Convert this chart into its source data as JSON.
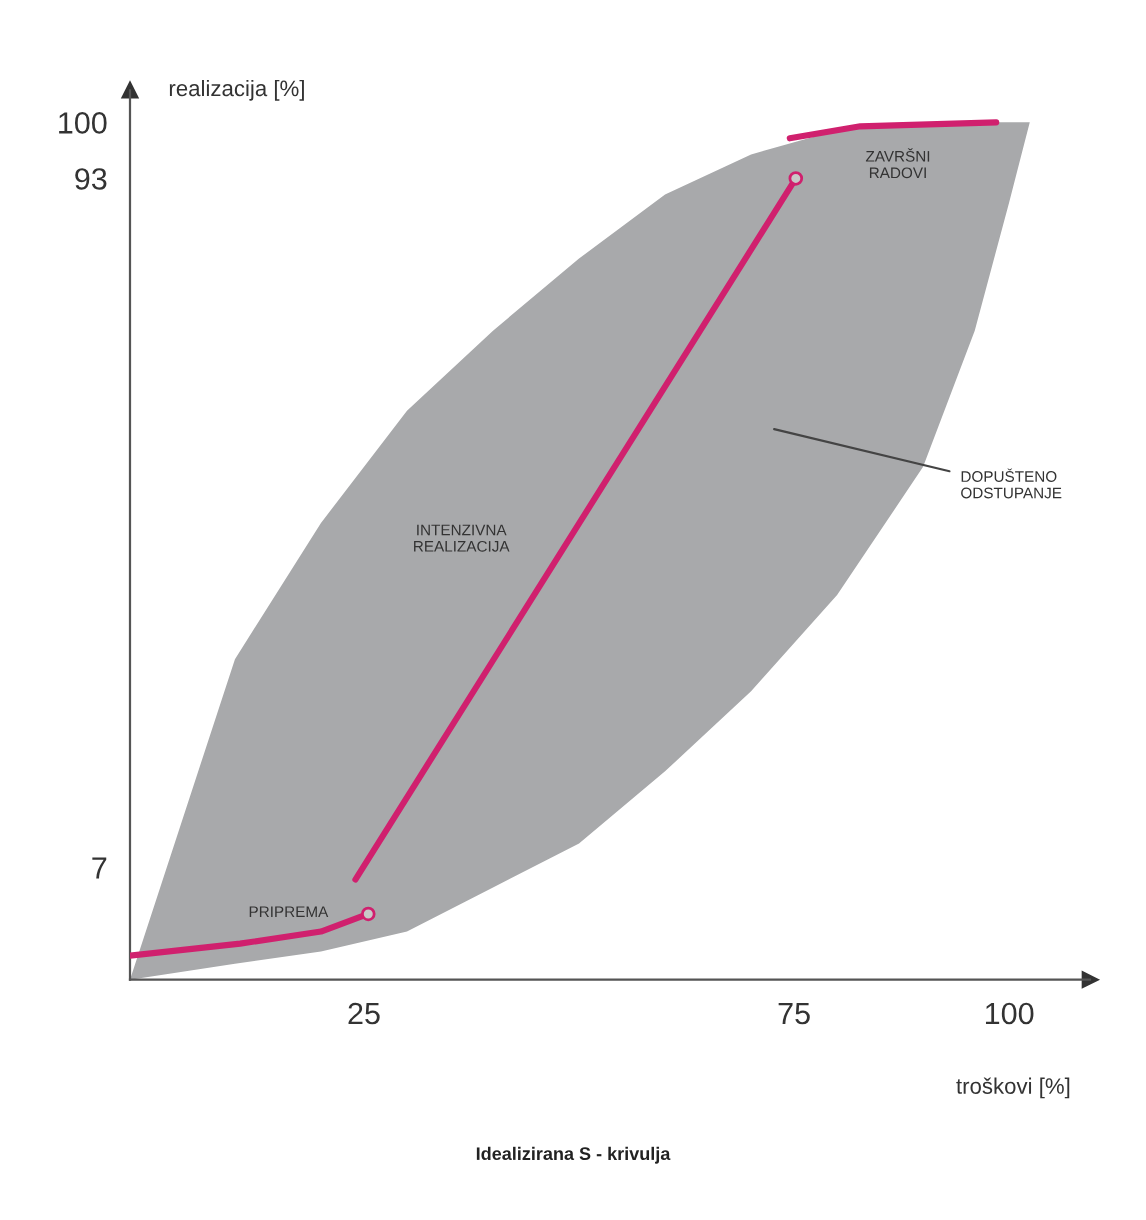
{
  "chart_data": {
    "type": "line",
    "title": "Idealizirana S - krivulja",
    "xlabel": "troškovi [%]",
    "ylabel": "realizacija [%]",
    "xlim": [
      -2.2,
      109.4
    ],
    "ylim": [
      -7,
      104
    ],
    "xticks": [
      25,
      75,
      100
    ],
    "yticks": [
      7,
      93,
      100
    ],
    "grid": false,
    "series": [
      {
        "type": "line",
        "color": "#a8a9ab",
        "x": [
          -2.2,
          10,
          20,
          30,
          40,
          50,
          60,
          70,
          80,
          90,
          96,
          100,
          102.4
        ],
        "values": [
          null,
          null,
          null,
          null,
          null,
          null,
          null,
          null,
          null,
          null,
          null,
          null,
          null
        ],
        "lower": [
          -7,
          -5,
          -3.5,
          -1,
          4.5,
          10,
          19,
          29,
          41,
          57,
          74,
          90,
          100
        ],
        "upper": [
          -7,
          33,
          50,
          64,
          74,
          83,
          91,
          96,
          99,
          100,
          100,
          100,
          100
        ]
      },
      {
        "type": "line",
        "color": "#d0206e",
        "x": [
          -2.2,
          10.6,
          20,
          25.5
        ],
        "values": [
          -4,
          -2.5,
          -1,
          1.2
        ]
      },
      {
        "type": "line",
        "color": "#d0206e",
        "x": [
          24,
          75.2
        ],
        "values": [
          5.5,
          93
        ]
      },
      {
        "type": "line",
        "color": "#d0206e",
        "x": [
          74.5,
          82.7,
          98.5
        ],
        "values": [
          98,
          99.5,
          100
        ]
      },
      {
        "type": "scatter",
        "color": "#d0206e",
        "marker": "circle",
        "x": [
          25.5,
          75.2
        ],
        "values": [
          1.2,
          93
        ]
      }
    ],
    "annotations": [
      "ZAVRŠNI\nRADOVI",
      "INTENZIVNA\nREALIZACIJA",
      "PRIPREMA",
      "DOPUŠTENO\nODSTUPANJE"
    ]
  }
}
